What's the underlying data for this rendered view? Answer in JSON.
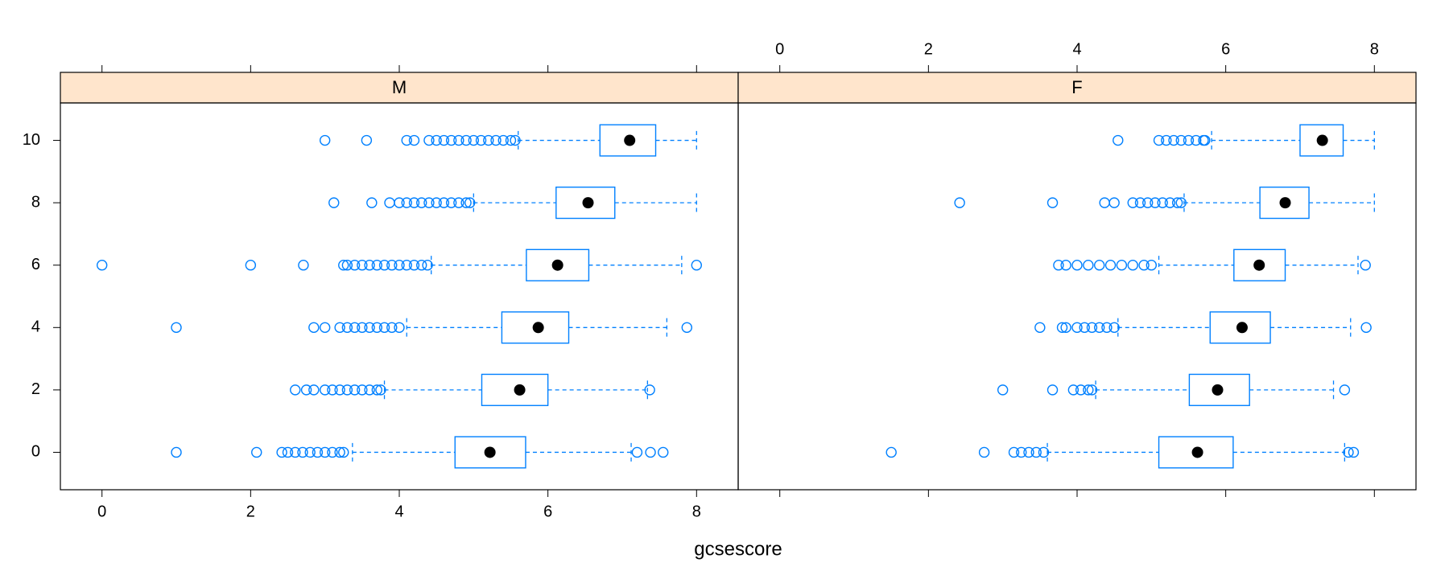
{
  "chart_data": {
    "type": "boxplot",
    "xlabel": "gcsescore",
    "categories": [
      "0",
      "2",
      "4",
      "6",
      "8",
      "10"
    ],
    "xlim": [
      -0.56,
      8.56
    ],
    "xticks": [
      0,
      2,
      4,
      6,
      8
    ],
    "box_color": "#0080ff",
    "median_color": "#000000",
    "strip_color": "#ffe5cc",
    "panels": [
      {
        "title": "M",
        "boxes": [
          {
            "low": 3.37,
            "q1": 4.75,
            "median": 5.22,
            "q3": 5.7,
            "high": 7.12,
            "outliers": [
              1.0,
              2.08,
              2.42,
              2.5,
              2.6,
              2.7,
              2.8,
              2.9,
              3.0,
              3.1,
              3.2,
              3.25,
              7.2,
              7.38,
              7.55
            ]
          },
          {
            "low": 3.8,
            "q1": 5.11,
            "median": 5.62,
            "q3": 6.0,
            "high": 7.34,
            "outliers": [
              2.6,
              2.75,
              2.85,
              3.0,
              3.1,
              3.2,
              3.3,
              3.4,
              3.5,
              3.6,
              3.7,
              3.75,
              7.37
            ]
          },
          {
            "low": 4.1,
            "q1": 5.38,
            "median": 5.87,
            "q3": 6.28,
            "high": 7.6,
            "outliers": [
              1.0,
              2.85,
              3.0,
              3.2,
              3.3,
              3.4,
              3.5,
              3.6,
              3.7,
              3.8,
              3.9,
              4.0,
              7.87
            ]
          },
          {
            "low": 4.43,
            "q1": 5.71,
            "median": 6.13,
            "q3": 6.55,
            "high": 7.8,
            "outliers": [
              0.0,
              2.0,
              2.71,
              3.25,
              3.3,
              3.4,
              3.5,
              3.6,
              3.7,
              3.8,
              3.9,
              4.0,
              4.1,
              4.2,
              4.3,
              4.38,
              8.0
            ]
          },
          {
            "low": 5.0,
            "q1": 6.11,
            "median": 6.54,
            "q3": 6.9,
            "high": 8.0,
            "outliers": [
              3.12,
              3.63,
              3.87,
              4.0,
              4.1,
              4.2,
              4.3,
              4.4,
              4.5,
              4.6,
              4.7,
              4.8,
              4.9,
              4.95
            ]
          },
          {
            "low": 5.6,
            "q1": 6.7,
            "median": 7.1,
            "q3": 7.45,
            "high": 8.0,
            "outliers": [
              3.0,
              3.56,
              4.1,
              4.2,
              4.4,
              4.5,
              4.6,
              4.7,
              4.8,
              4.9,
              5.0,
              5.1,
              5.2,
              5.3,
              5.4,
              5.5,
              5.56
            ]
          }
        ]
      },
      {
        "title": "F",
        "boxes": [
          {
            "low": 3.6,
            "q1": 5.1,
            "median": 5.62,
            "q3": 6.1,
            "high": 7.6,
            "outliers": [
              1.5,
              2.75,
              3.15,
              3.25,
              3.35,
              3.45,
              3.55,
              7.65,
              7.72
            ]
          },
          {
            "low": 4.25,
            "q1": 5.51,
            "median": 5.89,
            "q3": 6.32,
            "high": 7.45,
            "outliers": [
              3.0,
              3.67,
              3.95,
              4.05,
              4.15,
              4.2,
              7.6
            ]
          },
          {
            "low": 4.55,
            "q1": 5.79,
            "median": 6.22,
            "q3": 6.6,
            "high": 7.68,
            "outliers": [
              3.5,
              3.8,
              3.85,
              4.0,
              4.1,
              4.2,
              4.3,
              4.4,
              4.5,
              7.89
            ]
          },
          {
            "low": 5.1,
            "q1": 6.11,
            "median": 6.45,
            "q3": 6.8,
            "high": 7.78,
            "outliers": [
              3.75,
              3.85,
              4.0,
              4.15,
              4.3,
              4.45,
              4.6,
              4.75,
              4.9,
              5.0,
              7.88
            ]
          },
          {
            "low": 5.44,
            "q1": 6.46,
            "median": 6.8,
            "q3": 7.12,
            "high": 8.0,
            "outliers": [
              2.42,
              3.67,
              4.37,
              4.5,
              4.75,
              4.85,
              4.95,
              5.05,
              5.15,
              5.25,
              5.35,
              5.4
            ]
          },
          {
            "low": 5.81,
            "q1": 7.0,
            "median": 7.3,
            "q3": 7.58,
            "high": 8.0,
            "outliers": [
              4.55,
              5.1,
              5.2,
              5.3,
              5.4,
              5.5,
              5.6,
              5.7,
              5.72
            ]
          }
        ]
      }
    ]
  }
}
